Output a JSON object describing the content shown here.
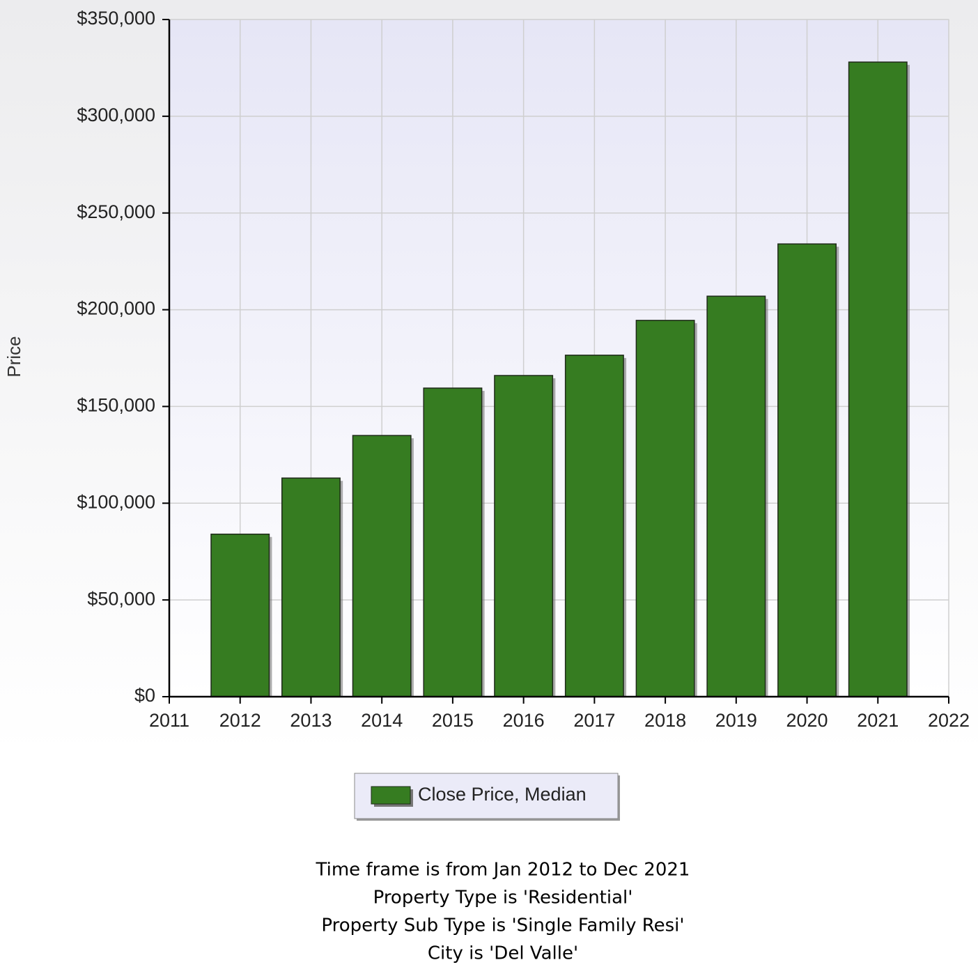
{
  "chart_data": {
    "type": "bar",
    "y_label": "Price",
    "x": [
      2012,
      2013,
      2014,
      2015,
      2016,
      2017,
      2018,
      2019,
      2020,
      2021
    ],
    "series": [
      {
        "name": "Close Price, Median",
        "color": "#367c21",
        "values": [
          84000,
          113000,
          135000,
          159500,
          166000,
          176500,
          194500,
          207000,
          234000,
          328000
        ]
      }
    ],
    "xlim": [
      2011,
      2022
    ],
    "xticks": [
      2011,
      2012,
      2013,
      2014,
      2015,
      2016,
      2017,
      2018,
      2019,
      2020,
      2021,
      2022
    ],
    "ylim": [
      0,
      350000
    ],
    "yticks": [
      {
        "value": 0,
        "label": "$0"
      },
      {
        "value": 50000,
        "label": "$50,000"
      },
      {
        "value": 100000,
        "label": "$100,000"
      },
      {
        "value": 150000,
        "label": "$150,000"
      },
      {
        "value": 200000,
        "label": "$200,000"
      },
      {
        "value": 250000,
        "label": "$250,000"
      },
      {
        "value": 300000,
        "label": "$300,000"
      },
      {
        "value": 350000,
        "label": "$350,000"
      }
    ],
    "grid": true,
    "legend": "bottom",
    "footnotes": [
      "Time frame is from Jan 2012 to Dec 2021",
      "Property Type is 'Residential'",
      "Property Sub Type is 'Single Family Resi'",
      "City is 'Del Valle'"
    ]
  }
}
